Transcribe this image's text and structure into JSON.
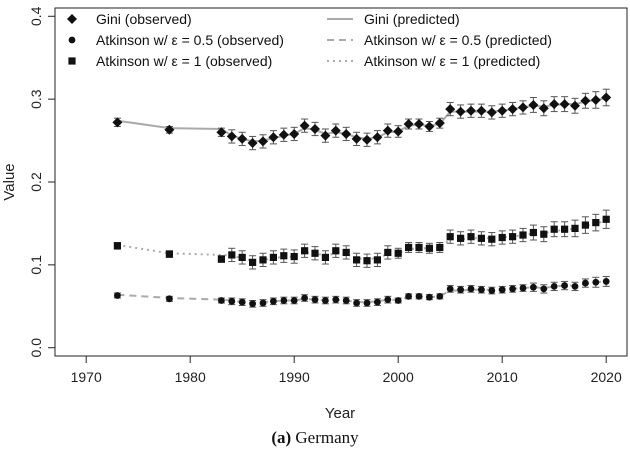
{
  "caption": {
    "label": "(a)",
    "text": "Germany"
  },
  "chart_data": {
    "type": "scatter",
    "xlabel": "Year",
    "ylabel": "Value",
    "xlim": [
      1967,
      2022
    ],
    "ylim": [
      -0.01,
      0.41
    ],
    "xticks": [
      1970,
      1980,
      1990,
      2000,
      2010,
      2020
    ],
    "yticks": [
      0.0,
      0.1,
      0.2,
      0.3,
      0.4
    ],
    "ytick_labels": [
      "0.0",
      "0.1",
      "0.2",
      "0.3",
      "0.4"
    ],
    "grid": false,
    "legend_position": "top",
    "legend": [
      {
        "label": "Gini (observed)",
        "kind": "marker",
        "marker": "diamond"
      },
      {
        "label": "Gini (predicted)",
        "kind": "line",
        "dash": "solid"
      },
      {
        "label": "Atkinson w/ ε = 0.5 (observed)",
        "kind": "marker",
        "marker": "circle"
      },
      {
        "label": "Atkinson w/ ε = 0.5 (predicted)",
        "kind": "line",
        "dash": "dashed"
      },
      {
        "label": "Atkinson w/ ε = 1 (observed)",
        "kind": "marker",
        "marker": "square"
      },
      {
        "label": "Atkinson w/ ε = 1 (predicted)",
        "kind": "line",
        "dash": "dotted"
      }
    ],
    "x": [
      1973,
      1978,
      1983,
      1984,
      1985,
      1986,
      1987,
      1988,
      1989,
      1990,
      1991,
      1992,
      1993,
      1994,
      1995,
      1996,
      1997,
      1998,
      1999,
      2000,
      2001,
      2002,
      2003,
      2004,
      2005,
      2006,
      2007,
      2008,
      2009,
      2010,
      2011,
      2012,
      2013,
      2014,
      2015,
      2016,
      2017,
      2018,
      2019,
      2020
    ],
    "series": [
      {
        "name": "Gini (observed)",
        "marker": "diamond",
        "color": "#111111",
        "values": [
          0.272,
          0.263,
          0.26,
          0.255,
          0.252,
          0.247,
          0.249,
          0.254,
          0.257,
          0.258,
          0.268,
          0.264,
          0.256,
          0.262,
          0.258,
          0.252,
          0.251,
          0.254,
          0.262,
          0.261,
          0.27,
          0.27,
          0.267,
          0.271,
          0.288,
          0.285,
          0.286,
          0.286,
          0.284,
          0.286,
          0.288,
          0.29,
          0.293,
          0.289,
          0.294,
          0.294,
          0.292,
          0.298,
          0.299,
          0.302
        ],
        "errors": [
          0.005,
          0.004,
          0.005,
          0.008,
          0.008,
          0.008,
          0.008,
          0.008,
          0.008,
          0.008,
          0.008,
          0.008,
          0.008,
          0.008,
          0.008,
          0.008,
          0.008,
          0.008,
          0.008,
          0.007,
          0.006,
          0.006,
          0.006,
          0.006,
          0.008,
          0.008,
          0.008,
          0.008,
          0.008,
          0.008,
          0.008,
          0.008,
          0.009,
          0.009,
          0.009,
          0.009,
          0.009,
          0.009,
          0.01,
          0.01
        ]
      },
      {
        "name": "Atkinson w/ ε = 0.5 (observed)",
        "marker": "circle",
        "color": "#111111",
        "values": [
          0.063,
          0.059,
          0.057,
          0.056,
          0.055,
          0.053,
          0.054,
          0.056,
          0.057,
          0.057,
          0.06,
          0.058,
          0.057,
          0.058,
          0.057,
          0.054,
          0.054,
          0.055,
          0.058,
          0.057,
          0.062,
          0.062,
          0.061,
          0.062,
          0.071,
          0.07,
          0.071,
          0.07,
          0.069,
          0.07,
          0.071,
          0.072,
          0.073,
          0.071,
          0.074,
          0.075,
          0.074,
          0.078,
          0.079,
          0.08
        ],
        "errors": [
          0.003,
          0.003,
          0.003,
          0.004,
          0.004,
          0.004,
          0.004,
          0.004,
          0.004,
          0.004,
          0.004,
          0.004,
          0.004,
          0.004,
          0.004,
          0.004,
          0.004,
          0.004,
          0.004,
          0.003,
          0.003,
          0.003,
          0.003,
          0.003,
          0.004,
          0.004,
          0.004,
          0.004,
          0.004,
          0.004,
          0.004,
          0.004,
          0.005,
          0.005,
          0.005,
          0.005,
          0.005,
          0.005,
          0.006,
          0.006
        ]
      },
      {
        "name": "Atkinson w/ ε = 1 (observed)",
        "marker": "square",
        "color": "#111111",
        "values": [
          0.123,
          0.113,
          0.107,
          0.112,
          0.109,
          0.103,
          0.106,
          0.109,
          0.111,
          0.11,
          0.117,
          0.114,
          0.109,
          0.117,
          0.115,
          0.106,
          0.105,
          0.106,
          0.115,
          0.114,
          0.121,
          0.121,
          0.12,
          0.121,
          0.134,
          0.132,
          0.134,
          0.132,
          0.131,
          0.133,
          0.134,
          0.136,
          0.139,
          0.137,
          0.143,
          0.143,
          0.144,
          0.148,
          0.151,
          0.155
        ],
        "errors": [
          0.004,
          0.004,
          0.004,
          0.008,
          0.008,
          0.008,
          0.008,
          0.008,
          0.008,
          0.008,
          0.008,
          0.008,
          0.008,
          0.008,
          0.008,
          0.008,
          0.008,
          0.008,
          0.008,
          0.006,
          0.006,
          0.006,
          0.006,
          0.006,
          0.008,
          0.008,
          0.008,
          0.008,
          0.008,
          0.008,
          0.008,
          0.008,
          0.009,
          0.009,
          0.009,
          0.009,
          0.01,
          0.01,
          0.01,
          0.011
        ]
      }
    ],
    "predicted": [
      {
        "name": "Gini (predicted)",
        "dash": "solid",
        "color": "#aaaaaa",
        "x": [
          1973,
          1978,
          1983,
          1984,
          1985,
          1986,
          1987,
          1988,
          1989,
          1990,
          1991,
          1992,
          1993,
          1994,
          1995,
          1996,
          1997,
          1998,
          1999,
          2000,
          2001,
          2002,
          2003,
          2004,
          2005,
          2006,
          2007,
          2008,
          2009,
          2010,
          2011,
          2012,
          2013,
          2014,
          2015,
          2016,
          2017,
          2018,
          2019,
          2020
        ],
        "y": [
          0.274,
          0.265,
          0.264,
          0.256,
          0.252,
          0.249,
          0.25,
          0.253,
          0.256,
          0.258,
          0.265,
          0.263,
          0.258,
          0.26,
          0.258,
          0.254,
          0.252,
          0.254,
          0.26,
          0.261,
          0.268,
          0.269,
          0.268,
          0.27,
          0.285,
          0.285,
          0.285,
          0.285,
          0.285,
          0.286,
          0.288,
          0.29,
          0.292,
          0.291,
          0.293,
          0.294,
          0.294,
          0.297,
          0.299,
          0.301
        ]
      },
      {
        "name": "Atkinson w/ ε = 0.5 (predicted)",
        "dash": "dashed",
        "color": "#aaaaaa",
        "x": [
          1973,
          1978,
          1983,
          1984,
          1985,
          1986,
          1987,
          1988,
          1989,
          1990,
          1991,
          1992,
          1993,
          1994,
          1995,
          1996,
          1997,
          1998,
          1999,
          2000,
          2001,
          2002,
          2003,
          2004,
          2005,
          2006,
          2007,
          2008,
          2009,
          2010,
          2011,
          2012,
          2013,
          2014,
          2015,
          2016,
          2017,
          2018,
          2019,
          2020
        ],
        "y": [
          0.064,
          0.06,
          0.058,
          0.057,
          0.055,
          0.054,
          0.055,
          0.056,
          0.057,
          0.057,
          0.059,
          0.058,
          0.057,
          0.058,
          0.057,
          0.055,
          0.055,
          0.056,
          0.058,
          0.058,
          0.061,
          0.062,
          0.061,
          0.062,
          0.069,
          0.069,
          0.07,
          0.07,
          0.07,
          0.07,
          0.071,
          0.072,
          0.073,
          0.072,
          0.074,
          0.075,
          0.075,
          0.077,
          0.079,
          0.08
        ]
      },
      {
        "name": "Atkinson w/ ε = 1 (predicted)",
        "dash": "dotted",
        "color": "#aaaaaa",
        "x": [
          1973,
          1978,
          1983,
          1984,
          1985,
          1986,
          1987,
          1988,
          1989,
          1990,
          1991,
          1992,
          1993,
          1994,
          1995,
          1996,
          1997,
          1998,
          1999,
          2000,
          2001,
          2002,
          2003,
          2004,
          2005,
          2006,
          2007,
          2008,
          2009,
          2010,
          2011,
          2012,
          2013,
          2014,
          2015,
          2016,
          2017,
          2018,
          2019,
          2020
        ],
        "y": [
          0.124,
          0.114,
          0.112,
          0.111,
          0.108,
          0.105,
          0.106,
          0.108,
          0.11,
          0.11,
          0.115,
          0.114,
          0.111,
          0.114,
          0.113,
          0.108,
          0.107,
          0.108,
          0.113,
          0.114,
          0.119,
          0.12,
          0.12,
          0.121,
          0.131,
          0.131,
          0.132,
          0.132,
          0.132,
          0.133,
          0.134,
          0.136,
          0.138,
          0.138,
          0.141,
          0.142,
          0.144,
          0.147,
          0.15,
          0.153
        ]
      }
    ]
  }
}
